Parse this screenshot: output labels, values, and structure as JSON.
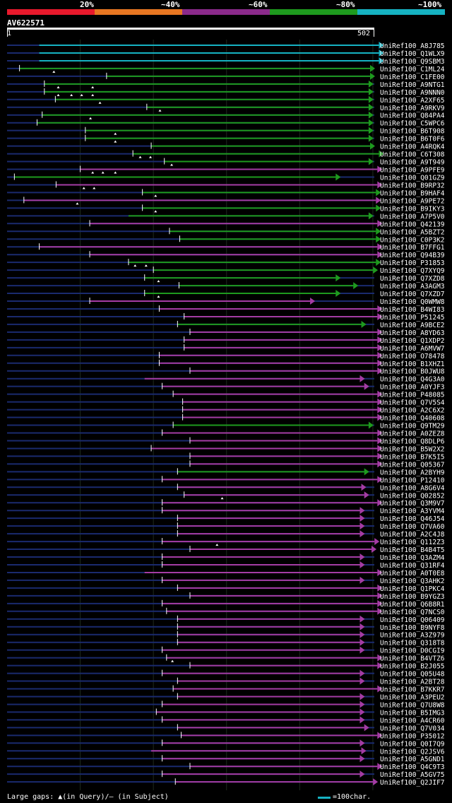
{
  "legend": [
    {
      "label": "",
      "color": "#e8192c"
    },
    {
      "label": "20%",
      "color": "#e8192c"
    },
    {
      "label": "~40%",
      "color": "#e87722"
    },
    {
      "label": "~60%",
      "color": "#8b2a8b"
    },
    {
      "label": "~80%",
      "color": "#1e9a1e"
    },
    {
      "label": "~100%",
      "color": "#16b2c2"
    }
  ],
  "query": {
    "name": "AV622571",
    "start": "1",
    "end": "502"
  },
  "footer": {
    "gaps_text": "Large gaps: ▲(in Query)/– (in Subject)",
    "scale_text": "=100char.",
    "scale_color": "#16b2c2"
  },
  "chart_data": {
    "type": "alignment",
    "query_length": 502,
    "colors": {
      "cyan": "#16b2c2",
      "green": "#1e9a1e",
      "purple": "#a43ca4",
      "navy": "#1a2a6e"
    },
    "hits": [
      {
        "name": "UniRef100_A8J785",
        "start": 44,
        "end": 514,
        "color": "cyan",
        "qs": false,
        "gaps": []
      },
      {
        "name": "UniRef100_Q1WLX9",
        "start": 44,
        "end": 514,
        "color": "cyan",
        "qs": false,
        "gaps": []
      },
      {
        "name": "UniRef100_Q9SBM3",
        "start": 44,
        "end": 514,
        "color": "cyan",
        "qs": false,
        "gaps": []
      },
      {
        "name": "UniRef100_C1ML24",
        "start": 17,
        "end": 502,
        "color": "green",
        "qs": true,
        "gaps": [
          64
        ]
      },
      {
        "name": "UniRef100_C1FE00",
        "start": 136,
        "end": 502,
        "color": "green",
        "qs": true,
        "gaps": []
      },
      {
        "name": "UniRef100_A9NTG1",
        "start": 51,
        "end": 500,
        "color": "green",
        "qs": true,
        "gaps": [
          70,
          117
        ]
      },
      {
        "name": "UniRef100_A9NNN0",
        "start": 51,
        "end": 500,
        "color": "green",
        "qs": true,
        "gaps": [
          70,
          88,
          102,
          117
        ]
      },
      {
        "name": "UniRef100_A2XF65",
        "start": 66,
        "end": 500,
        "color": "green",
        "qs": true,
        "gaps": [
          127
        ]
      },
      {
        "name": "UniRef100_A9RKV9",
        "start": 191,
        "end": 500,
        "color": "green",
        "qs": true,
        "gaps": [
          209
        ]
      },
      {
        "name": "UniRef100_Q84PA4",
        "start": 48,
        "end": 500,
        "color": "green",
        "qs": true,
        "gaps": [
          114
        ]
      },
      {
        "name": "UniRef100_C5WPC6",
        "start": 41,
        "end": 500,
        "color": "green",
        "qs": true,
        "gaps": []
      },
      {
        "name": "UniRef100_B6T908",
        "start": 107,
        "end": 500,
        "color": "green",
        "qs": true,
        "gaps": [
          148
        ]
      },
      {
        "name": "UniRef100_B6T0F6",
        "start": 107,
        "end": 500,
        "color": "green",
        "qs": true,
        "gaps": [
          148
        ]
      },
      {
        "name": "UniRef100_A4RQK4",
        "start": 197,
        "end": 502,
        "color": "green",
        "qs": true,
        "gaps": []
      },
      {
        "name": "UniRef100_C6T308",
        "start": 172,
        "end": 514,
        "color": "green",
        "qs": true,
        "gaps": [
          182,
          196
        ]
      },
      {
        "name": "UniRef100_A9T949",
        "start": 215,
        "end": 500,
        "color": "green",
        "qs": true,
        "gaps": [
          225
        ]
      },
      {
        "name": "UniRef100_A9PFE9",
        "start": 100,
        "end": 512,
        "color": "purple",
        "qs": true,
        "gaps": [
          117,
          131,
          148
        ]
      },
      {
        "name": "UniRef100_Q01GZ9",
        "start": 10,
        "end": 455,
        "color": "green",
        "qs": true,
        "gaps": []
      },
      {
        "name": "UniRef100_B9RP32",
        "start": 67,
        "end": 512,
        "color": "purple",
        "qs": true,
        "gaps": [
          105,
          119
        ]
      },
      {
        "name": "UniRef100_B9HAF4",
        "start": 185,
        "end": 510,
        "color": "green",
        "qs": true,
        "gaps": [
          203
        ]
      },
      {
        "name": "UniRef100_A9PE72",
        "start": 23,
        "end": 510,
        "color": "purple",
        "qs": true,
        "gaps": [
          96
        ]
      },
      {
        "name": "UniRef100_B9IKY3",
        "start": 185,
        "end": 510,
        "color": "green",
        "qs": true,
        "gaps": [
          203
        ]
      },
      {
        "name": "UniRef100_A7P5V0",
        "start": 166,
        "end": 500,
        "color": "green",
        "qs": false,
        "gaps": []
      },
      {
        "name": "UniRef100_Q42139",
        "start": 113,
        "end": 512,
        "color": "purple",
        "qs": true,
        "gaps": []
      },
      {
        "name": "UniRef100_A5BZT2",
        "start": 222,
        "end": 510,
        "color": "green",
        "qs": true,
        "gaps": []
      },
      {
        "name": "UniRef100_C0P3K2",
        "start": 236,
        "end": 510,
        "color": "green",
        "qs": true,
        "gaps": []
      },
      {
        "name": "UniRef100_B7FFG1",
        "start": 44,
        "end": 512,
        "color": "purple",
        "qs": true,
        "gaps": []
      },
      {
        "name": "UniRef100_Q94B39",
        "start": 113,
        "end": 512,
        "color": "purple",
        "qs": true,
        "gaps": []
      },
      {
        "name": "UniRef100_P31853",
        "start": 166,
        "end": 510,
        "color": "green",
        "qs": true,
        "gaps": [
          175,
          190
        ]
      },
      {
        "name": "UniRef100_Q7XYQ9",
        "start": 200,
        "end": 506,
        "color": "green",
        "qs": true,
        "gaps": []
      },
      {
        "name": "UniRef100_Q7XZD8",
        "start": 188,
        "end": 455,
        "color": "green",
        "qs": true,
        "gaps": [
          207
        ]
      },
      {
        "name": "UniRef100_A3AGM3",
        "start": 235,
        "end": 479,
        "color": "green",
        "qs": true,
        "gaps": []
      },
      {
        "name": "UniRef100_Q7XZD7",
        "start": 188,
        "end": 455,
        "color": "green",
        "qs": true,
        "gaps": [
          207
        ]
      },
      {
        "name": "UniRef100_Q0WMW8",
        "start": 113,
        "end": 420,
        "color": "purple",
        "qs": true,
        "gaps": []
      },
      {
        "name": "UniRef100_B4WI83",
        "start": 208,
        "end": 512,
        "color": "purple",
        "qs": true,
        "gaps": []
      },
      {
        "name": "UniRef100_P51245",
        "start": 242,
        "end": 512,
        "color": "purple",
        "qs": true,
        "gaps": []
      },
      {
        "name": "UniRef100_A9BCE2",
        "start": 233,
        "end": 490,
        "color": "green",
        "qs": true,
        "gaps": []
      },
      {
        "name": "UniRef100_A8YD63",
        "start": 250,
        "end": 512,
        "color": "purple",
        "qs": true,
        "gaps": []
      },
      {
        "name": "UniRef100_Q1XDP2",
        "start": 242,
        "end": 512,
        "color": "purple",
        "qs": true,
        "gaps": []
      },
      {
        "name": "UniRef100_A6MVW7",
        "start": 242,
        "end": 512,
        "color": "purple",
        "qs": true,
        "gaps": []
      },
      {
        "name": "UniRef100_O78478",
        "start": 208,
        "end": 512,
        "color": "purple",
        "qs": true,
        "gaps": []
      },
      {
        "name": "UniRef100_B1XHZ1",
        "start": 208,
        "end": 512,
        "color": "purple",
        "qs": true,
        "gaps": []
      },
      {
        "name": "UniRef100_B0JWU8",
        "start": 250,
        "end": 512,
        "color": "purple",
        "qs": true,
        "gaps": []
      },
      {
        "name": "UniRef100_Q4G3A0",
        "start": 188,
        "end": 488,
        "color": "purple",
        "qs": false,
        "gaps": []
      },
      {
        "name": "UniRef100_A0YJF3",
        "start": 212,
        "end": 494,
        "color": "purple",
        "qs": true,
        "gaps": []
      },
      {
        "name": "UniRef100_P48085",
        "start": 227,
        "end": 512,
        "color": "purple",
        "qs": true,
        "gaps": []
      },
      {
        "name": "UniRef100_Q7V5S4",
        "start": 240,
        "end": 512,
        "color": "purple",
        "qs": true,
        "gaps": []
      },
      {
        "name": "UniRef100_A2C6X2",
        "start": 240,
        "end": 512,
        "color": "purple",
        "qs": true,
        "gaps": []
      },
      {
        "name": "UniRef100_Q40608",
        "start": 240,
        "end": 512,
        "color": "purple",
        "qs": true,
        "gaps": []
      },
      {
        "name": "UniRef100_Q9TM29",
        "start": 227,
        "end": 500,
        "color": "green",
        "qs": true,
        "gaps": []
      },
      {
        "name": "UniRef100_A0ZEZ8",
        "start": 212,
        "end": 512,
        "color": "purple",
        "qs": true,
        "gaps": []
      },
      {
        "name": "UniRef100_Q8DLP6",
        "start": 250,
        "end": 512,
        "color": "purple",
        "qs": true,
        "gaps": []
      },
      {
        "name": "UniRef100_B5W2X2",
        "start": 197,
        "end": 512,
        "color": "purple",
        "qs": true,
        "gaps": []
      },
      {
        "name": "UniRef100_B7K5I5",
        "start": 250,
        "end": 512,
        "color": "purple",
        "qs": true,
        "gaps": []
      },
      {
        "name": "UniRef100_Q05367",
        "start": 250,
        "end": 512,
        "color": "purple",
        "qs": true,
        "gaps": []
      },
      {
        "name": "UniRef100_A2BYH9",
        "start": 233,
        "end": 494,
        "color": "green",
        "qs": true,
        "gaps": []
      },
      {
        "name": "UniRef100_P12410",
        "start": 212,
        "end": 512,
        "color": "purple",
        "qs": true,
        "gaps": []
      },
      {
        "name": "UniRef100_A8G6V4",
        "start": 233,
        "end": 490,
        "color": "purple",
        "qs": true,
        "gaps": []
      },
      {
        "name": "UniRef100_Q02852",
        "start": 242,
        "end": 494,
        "color": "purple",
        "qs": true,
        "gaps": [
          294
        ]
      },
      {
        "name": "UniRef100_Q3M9V7",
        "start": 212,
        "end": 512,
        "color": "purple",
        "qs": true,
        "gaps": []
      },
      {
        "name": "UniRef100_A3YVM4",
        "start": 212,
        "end": 488,
        "color": "purple",
        "qs": true,
        "gaps": []
      },
      {
        "name": "UniRef100_Q46J54",
        "start": 233,
        "end": 488,
        "color": "purple",
        "qs": true,
        "gaps": []
      },
      {
        "name": "UniRef100_Q7VA60",
        "start": 233,
        "end": 488,
        "color": "purple",
        "qs": true,
        "gaps": []
      },
      {
        "name": "UniRef100_A2C4J8",
        "start": 233,
        "end": 488,
        "color": "purple",
        "qs": true,
        "gaps": []
      },
      {
        "name": "UniRef100_Q112Z3",
        "start": 212,
        "end": 508,
        "color": "purple",
        "qs": true,
        "gaps": [
          287
        ]
      },
      {
        "name": "UniRef100_B4B4T5",
        "start": 250,
        "end": 504,
        "color": "purple",
        "qs": true,
        "gaps": []
      },
      {
        "name": "UniRef100_Q3AZM4",
        "start": 212,
        "end": 488,
        "color": "purple",
        "qs": true,
        "gaps": []
      },
      {
        "name": "UniRef100_Q31RF4",
        "start": 212,
        "end": 488,
        "color": "purple",
        "qs": true,
        "gaps": []
      },
      {
        "name": "UniRef100_A0T0E8",
        "start": 188,
        "end": 512,
        "color": "purple",
        "qs": false,
        "gaps": []
      },
      {
        "name": "UniRef100_Q3AHK2",
        "start": 212,
        "end": 488,
        "color": "purple",
        "qs": true,
        "gaps": []
      },
      {
        "name": "UniRef100_Q1PKC4",
        "start": 233,
        "end": 512,
        "color": "purple",
        "qs": true,
        "gaps": []
      },
      {
        "name": "UniRef100_B9YGZ3",
        "start": 250,
        "end": 512,
        "color": "purple",
        "qs": true,
        "gaps": []
      },
      {
        "name": "UniRef100_Q6B8R1",
        "start": 212,
        "end": 512,
        "color": "purple",
        "qs": true,
        "gaps": []
      },
      {
        "name": "UniRef100_Q7NCS0",
        "start": 218,
        "end": 512,
        "color": "purple",
        "qs": true,
        "gaps": []
      },
      {
        "name": "UniRef100_Q06409",
        "start": 233,
        "end": 488,
        "color": "purple",
        "qs": true,
        "gaps": []
      },
      {
        "name": "UniRef100_B9NYF8",
        "start": 233,
        "end": 488,
        "color": "purple",
        "qs": true,
        "gaps": []
      },
      {
        "name": "UniRef100_A3Z979",
        "start": 233,
        "end": 488,
        "color": "purple",
        "qs": true,
        "gaps": []
      },
      {
        "name": "UniRef100_Q318T8",
        "start": 233,
        "end": 488,
        "color": "purple",
        "qs": true,
        "gaps": []
      },
      {
        "name": "UniRef100_D0CGI9",
        "start": 212,
        "end": 488,
        "color": "purple",
        "qs": true,
        "gaps": []
      },
      {
        "name": "UniRef100_B4VTZ6",
        "start": 218,
        "end": 512,
        "color": "purple",
        "qs": true,
        "gaps": [
          226
        ]
      },
      {
        "name": "UniRef100_B2J055",
        "start": 250,
        "end": 512,
        "color": "purple",
        "qs": true,
        "gaps": []
      },
      {
        "name": "UniRef100_Q05U48",
        "start": 212,
        "end": 488,
        "color": "purple",
        "qs": true,
        "gaps": []
      },
      {
        "name": "UniRef100_A2BT28",
        "start": 233,
        "end": 488,
        "color": "purple",
        "qs": true,
        "gaps": []
      },
      {
        "name": "UniRef100_B7KKR7",
        "start": 227,
        "end": 512,
        "color": "purple",
        "qs": true,
        "gaps": []
      },
      {
        "name": "UniRef100_A3PEU2",
        "start": 233,
        "end": 488,
        "color": "purple",
        "qs": true,
        "gaps": []
      },
      {
        "name": "UniRef100_Q7U8W8",
        "start": 212,
        "end": 488,
        "color": "purple",
        "qs": true,
        "gaps": []
      },
      {
        "name": "UniRef100_B5IMG3",
        "start": 204,
        "end": 488,
        "color": "purple",
        "qs": true,
        "gaps": []
      },
      {
        "name": "UniRef100_A4CR60",
        "start": 212,
        "end": 488,
        "color": "purple",
        "qs": true,
        "gaps": []
      },
      {
        "name": "UniRef100_Q7V034",
        "start": 233,
        "end": 494,
        "color": "purple",
        "qs": true,
        "gaps": []
      },
      {
        "name": "UniRef100_P35012",
        "start": 238,
        "end": 512,
        "color": "purple",
        "qs": true,
        "gaps": []
      },
      {
        "name": "UniRef100_Q0I7Q9",
        "start": 212,
        "end": 488,
        "color": "purple",
        "qs": true,
        "gaps": []
      },
      {
        "name": "UniRef100_Q2JSV6",
        "start": 197,
        "end": 490,
        "color": "purple",
        "qs": false,
        "gaps": []
      },
      {
        "name": "UniRef100_A5GND1",
        "start": 212,
        "end": 488,
        "color": "purple",
        "qs": true,
        "gaps": []
      },
      {
        "name": "UniRef100_Q4C9T3",
        "start": 250,
        "end": 512,
        "color": "purple",
        "qs": true,
        "gaps": []
      },
      {
        "name": "UniRef100_A5GV75",
        "start": 212,
        "end": 488,
        "color": "purple",
        "qs": true,
        "gaps": []
      },
      {
        "name": "UniRef100_Q2JIF7",
        "start": 230,
        "end": 506,
        "color": "purple",
        "qs": true,
        "gaps": []
      }
    ]
  }
}
